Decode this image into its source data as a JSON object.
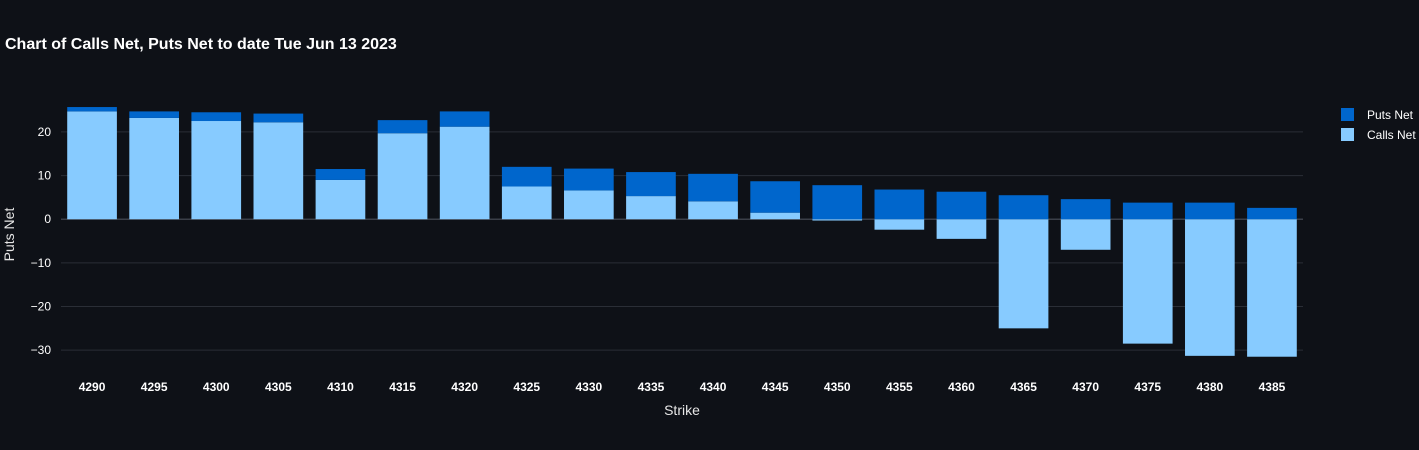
{
  "chart_data": {
    "type": "bar",
    "barmode": "stacked-overlay",
    "title": "Chart of Calls Net, Puts Net to date Tue Jun 13 2023",
    "xlabel": "Strike",
    "ylabel": "Puts Net",
    "ylim": [
      -35,
      28
    ],
    "yticks": [
      20,
      10,
      0,
      -10,
      -20,
      -30
    ],
    "ytick_labels": [
      "20",
      "10",
      "0",
      "−10",
      "−20",
      "−30"
    ],
    "grid": true,
    "legend_position": "top-right",
    "categories": [
      "4290",
      "4295",
      "4300",
      "4305",
      "4310",
      "4315",
      "4320",
      "4325",
      "4330",
      "4335",
      "4340",
      "4345",
      "4350",
      "4355",
      "4360",
      "4365",
      "4370",
      "4375",
      "4380",
      "4385"
    ],
    "series": [
      {
        "name": "Puts Net",
        "color": "#0066cc",
        "values": [
          1,
          1.5,
          2,
          2,
          2.5,
          3,
          3.5,
          4.5,
          5,
          5.5,
          6.3,
          7.2,
          7.8,
          6.8,
          6.3,
          5.5,
          4.6,
          3.8,
          3.8,
          2.6
        ]
      },
      {
        "name": "Calls Net",
        "color": "#87cbff",
        "values": [
          24.7,
          23.2,
          22.5,
          22.2,
          9,
          19.7,
          21.2,
          7.5,
          6.6,
          5.3,
          4.1,
          1.5,
          -0.3,
          -2.4,
          -4.5,
          -25,
          -7,
          -28.5,
          -31.3,
          -31.5
        ]
      }
    ]
  }
}
